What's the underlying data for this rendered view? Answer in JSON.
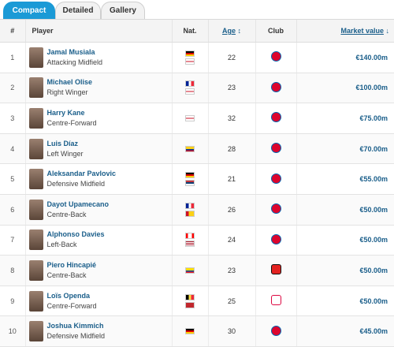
{
  "tabs": [
    {
      "label": "Compact",
      "active": true
    },
    {
      "label": "Detailed",
      "active": false
    },
    {
      "label": "Gallery",
      "active": false
    }
  ],
  "headers": {
    "num": "#",
    "player": "Player",
    "nat": "Nat.",
    "age": "Age",
    "club": "Club",
    "market_value": "Market value"
  },
  "sort_icons": {
    "age": "↕",
    "market_value": "↓"
  },
  "players": [
    {
      "num": "1",
      "name": "Jamal Musiala",
      "position": "Attacking Midfield",
      "age": "22",
      "value": "€140.00m",
      "flags": [
        "germany-flag",
        "england-flag"
      ],
      "club": "bayern-munich-crest"
    },
    {
      "num": "2",
      "name": "Michael Olise",
      "position": "Right Winger",
      "age": "23",
      "value": "€100.00m",
      "flags": [
        "france-flag",
        "england-flag"
      ],
      "club": "bayern-munich-crest"
    },
    {
      "num": "3",
      "name": "Harry Kane",
      "position": "Centre-Forward",
      "age": "32",
      "value": "€75.00m",
      "flags": [
        "england-flag"
      ],
      "club": "bayern-munich-crest"
    },
    {
      "num": "4",
      "name": "Luis Díaz",
      "position": "Left Winger",
      "age": "28",
      "value": "€70.00m",
      "flags": [
        "colombia-flag"
      ],
      "club": "bayern-munich-crest"
    },
    {
      "num": "5",
      "name": "Aleksandar Pavlovic",
      "position": "Defensive Midfield",
      "age": "21",
      "value": "€55.00m",
      "flags": [
        "germany-flag",
        "serbia-flag"
      ],
      "club": "bayern-munich-crest"
    },
    {
      "num": "6",
      "name": "Dayot Upamecano",
      "position": "Centre-Back",
      "age": "26",
      "value": "€50.00m",
      "flags": [
        "france-flag",
        "guinea-bissau-flag"
      ],
      "club": "bayern-munich-crest"
    },
    {
      "num": "7",
      "name": "Alphonso Davies",
      "position": "Left-Back",
      "age": "24",
      "value": "€50.00m",
      "flags": [
        "canada-flag",
        "usa-flag"
      ],
      "club": "bayern-munich-crest"
    },
    {
      "num": "8",
      "name": "Piero Hincapié",
      "position": "Centre-Back",
      "age": "23",
      "value": "€50.00m",
      "flags": [
        "ecuador-flag"
      ],
      "club": "bayer-leverkusen-crest"
    },
    {
      "num": "9",
      "name": "Loïs Openda",
      "position": "Centre-Forward",
      "age": "25",
      "value": "€50.00m",
      "flags": [
        "belgium-flag",
        "morocco-flag"
      ],
      "club": "rb-leipzig-crest"
    },
    {
      "num": "10",
      "name": "Joshua Kimmich",
      "position": "Defensive Midfield",
      "age": "30",
      "value": "€45.00m",
      "flags": [
        "germany-flag"
      ],
      "club": "bayern-munich-crest"
    }
  ],
  "colors": {
    "tab_active": "#1b9ad6",
    "link": "#1a5e8a"
  }
}
